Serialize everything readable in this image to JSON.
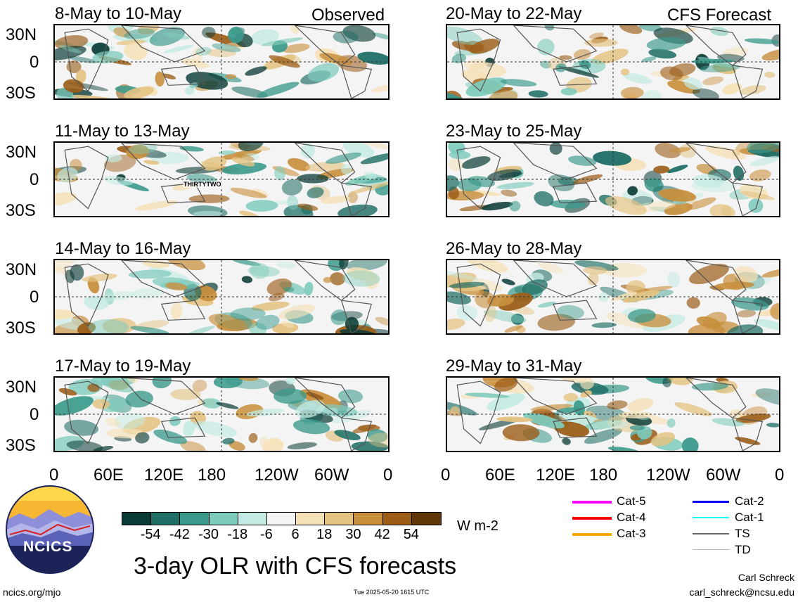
{
  "panels": {
    "left": [
      {
        "title": "8-May to 10-May",
        "tag": "Observed"
      },
      {
        "title": "11-May to 13-May",
        "tag": ""
      },
      {
        "title": "14-May to 16-May",
        "tag": ""
      },
      {
        "title": "17-May to 19-May",
        "tag": ""
      }
    ],
    "right": [
      {
        "title": "20-May to 22-May",
        "tag": "CFS Forecast"
      },
      {
        "title": "23-May to 25-May",
        "tag": ""
      },
      {
        "title": "26-May to 28-May",
        "tag": ""
      },
      {
        "title": "29-May to 31-May",
        "tag": ""
      }
    ]
  },
  "storm_label": "THIRTYTWO",
  "lat_ticks": [
    "30N",
    "0",
    "30S"
  ],
  "lon_ticks": [
    "0",
    "60E",
    "120E",
    "180",
    "120W",
    "60W",
    "0"
  ],
  "colorbar": {
    "colors": [
      "#0a3b36",
      "#1f6f66",
      "#3b9a8c",
      "#7ecbbc",
      "#c4ebe3",
      "#f4f4f4",
      "#f5e1b8",
      "#e4c382",
      "#c88f3d",
      "#9b5d18",
      "#5e3608"
    ],
    "labels": [
      "-54",
      "-42",
      "-30",
      "-18",
      "-6",
      "6",
      "18",
      "30",
      "42",
      "54"
    ],
    "unit": "W m-2"
  },
  "legend": [
    {
      "label": "Cat-5",
      "color": "#ff00ff"
    },
    {
      "label": "Cat-4",
      "color": "#ff0000"
    },
    {
      "label": "Cat-3",
      "color": "#ffa500"
    },
    {
      "label": "Cat-2",
      "color": "#0000ff"
    },
    {
      "label": "Cat-1",
      "color": "#00ffff"
    },
    {
      "label": "TS",
      "color": "#666666"
    },
    {
      "label": "TD",
      "color": "#bbbbbb"
    }
  ],
  "logo_text": "NCICS",
  "main_title": "3-day OLR with CFS forecasts",
  "footer": {
    "url": "ncics.org/mjo",
    "timestamp": "Tue 2025-05-20 1615 UTC",
    "author": "Carl Schreck",
    "email": "carl_schreck@ncsu.edu"
  }
}
